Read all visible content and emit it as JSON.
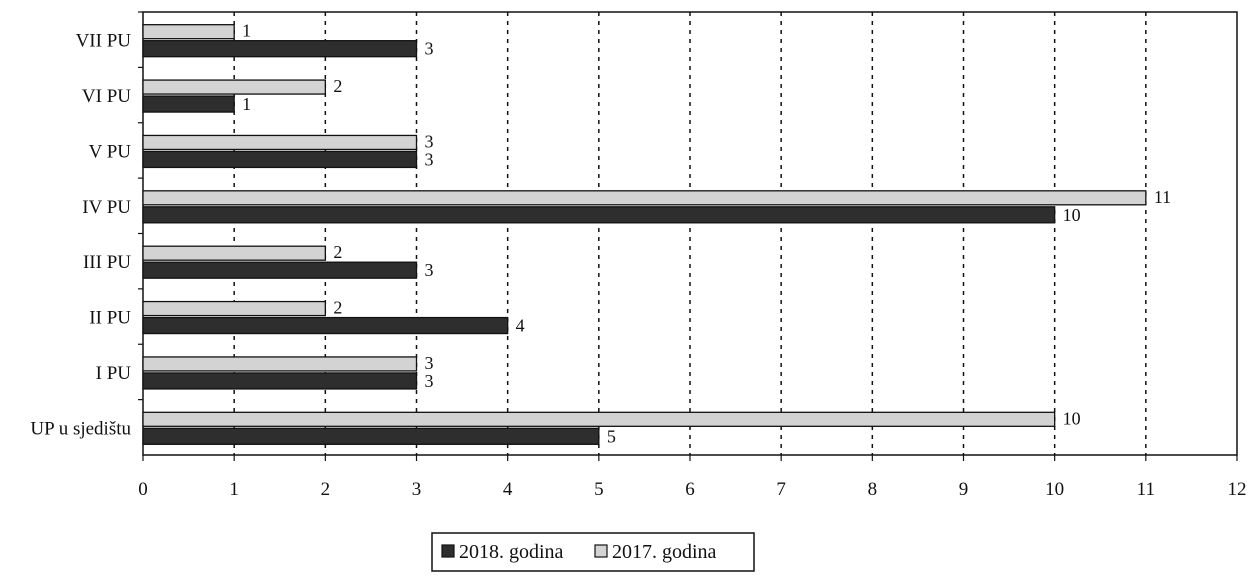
{
  "chart_data": {
    "type": "bar",
    "orientation": "horizontal",
    "categories": [
      "VII PU",
      "VI PU",
      "V PU",
      "IV PU",
      "III PU",
      "II PU",
      "I PU",
      "UP u sjedištu"
    ],
    "series": [
      {
        "name": "2017. godina",
        "values": [
          1,
          2,
          3,
          11,
          2,
          2,
          3,
          10
        ],
        "color": "#d3d3d3"
      },
      {
        "name": "2018. godina",
        "values": [
          3,
          1,
          3,
          10,
          3,
          4,
          3,
          5
        ],
        "color": "#2e2e2e"
      }
    ],
    "x_ticks": [
      "0",
      "1",
      "2",
      "3",
      "4",
      "5",
      "6",
      "7",
      "8",
      "9",
      "10",
      "11",
      "12"
    ],
    "xlim": [
      0,
      12
    ],
    "grid": "vertical dashed",
    "legend": {
      "position": "bottom-center",
      "entries": [
        "2018. godina",
        "2017. godina"
      ]
    },
    "title": "",
    "xlabel": "",
    "ylabel": ""
  }
}
